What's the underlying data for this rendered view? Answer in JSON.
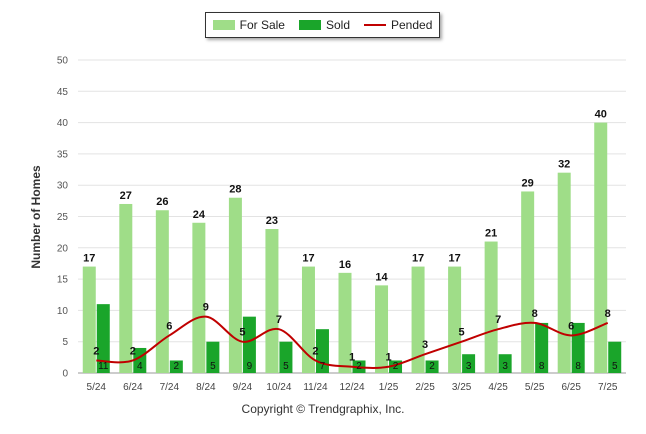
{
  "chart_data": {
    "type": "bar",
    "title": "",
    "xlabel": "",
    "ylabel": "Number of Homes",
    "ylim": [
      0,
      50
    ],
    "yticks": [
      0,
      5,
      10,
      15,
      20,
      25,
      30,
      35,
      40,
      45,
      50
    ],
    "grid": true,
    "legend_position": "top-center",
    "categories": [
      "5/24",
      "6/24",
      "7/24",
      "8/24",
      "9/24",
      "10/24",
      "11/24",
      "12/24",
      "1/25",
      "2/25",
      "3/25",
      "4/25",
      "5/25",
      "6/25",
      "7/25"
    ],
    "series": [
      {
        "name": "For Sale",
        "kind": "bar",
        "color": "#9fdd88",
        "values": [
          17,
          27,
          26,
          24,
          28,
          23,
          17,
          16,
          14,
          17,
          17,
          21,
          29,
          32,
          40
        ]
      },
      {
        "name": "Sold",
        "kind": "bar",
        "color": "#1aa52a",
        "values": [
          11,
          4,
          2,
          5,
          9,
          5,
          7,
          2,
          2,
          2,
          3,
          3,
          8,
          8,
          5
        ]
      },
      {
        "name": "Pended",
        "kind": "line",
        "color": "#c00000",
        "values": [
          2,
          2,
          6,
          9,
          5,
          7,
          2,
          1,
          1,
          3,
          5,
          7,
          8,
          6,
          8
        ]
      }
    ]
  },
  "footer": {
    "copyright": "Copyright © Trendgraphix, Inc."
  }
}
